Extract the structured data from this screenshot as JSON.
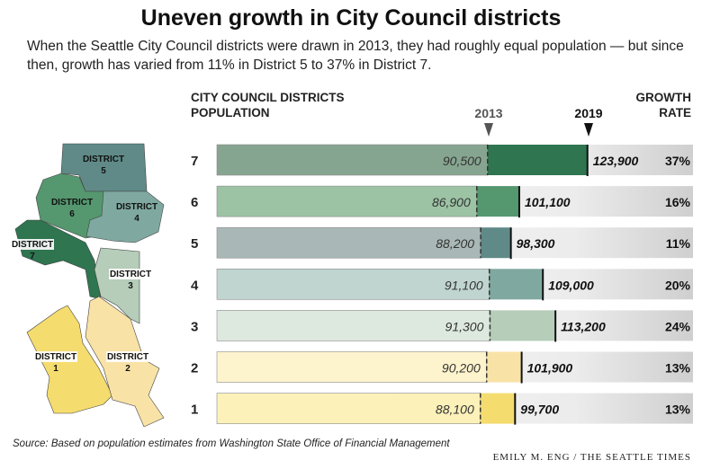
{
  "title": "Uneven growth in City Council districts",
  "subtitle": "When the Seattle City Council districts were drawn in 2013, they had roughly equal population — but since then, growth has varied from 11% in District 5 to 37% in District 7.",
  "headers": {
    "left_line1": "CITY COUNCIL DISTRICTS",
    "left_line2": "POPULATION",
    "marker_2013": "2013",
    "marker_2019": "2019",
    "right_line1": "GROWTH",
    "right_line2": "RATE"
  },
  "source": "Source: Based on population estimates from Washington State Office of Financial Management",
  "credit": "EMILY M. ENG / THE SEATTLE TIMES",
  "map": {
    "labels": [
      {
        "district": "5",
        "word": "DISTRICT",
        "num": "5"
      },
      {
        "district": "6",
        "word": "DISTRICT",
        "num": "6"
      },
      {
        "district": "4",
        "word": "DISTRICT",
        "num": "4"
      },
      {
        "district": "7",
        "word": "DISTRICT",
        "num": "7"
      },
      {
        "district": "3",
        "word": "DISTRICT",
        "num": "3"
      },
      {
        "district": "1",
        "word": "DISTRICT",
        "num": "1"
      },
      {
        "district": "2",
        "word": "DISTRICT",
        "num": "2"
      }
    ]
  },
  "chart_data": {
    "type": "bar",
    "title": "Uneven growth in City Council districts",
    "categories": [
      "7",
      "6",
      "5",
      "4",
      "3",
      "2",
      "1"
    ],
    "series": [
      {
        "name": "2013",
        "values": [
          90500,
          86900,
          88200,
          91100,
          91300,
          90200,
          88100
        ],
        "labels": [
          "90,500",
          "86,900",
          "88,200",
          "91,100",
          "91,300",
          "90,200",
          "88,100"
        ]
      },
      {
        "name": "2019",
        "values": [
          123900,
          101100,
          98300,
          109000,
          113200,
          101900,
          99700
        ],
        "labels": [
          "123,900",
          "101,100",
          "98,300",
          "109,000",
          "113,200",
          "101,900",
          "99,700"
        ]
      }
    ],
    "growth_rate": [
      "37%",
      "16%",
      "11%",
      "20%",
      "24%",
      "13%",
      "13%"
    ],
    "colors_2013": [
      "#86a590",
      "#9cc3a4",
      "#a9b8b6",
      "#c0d5cf",
      "#dde8de",
      "#fdf3cc",
      "#fcf1b9"
    ],
    "colors_2019": [
      "#2e7550",
      "#55976f",
      "#5f8a87",
      "#7fa9a0",
      "#b5cdb9",
      "#f8e2a6",
      "#f5dc6e"
    ],
    "xlim": [
      0,
      160000
    ]
  }
}
